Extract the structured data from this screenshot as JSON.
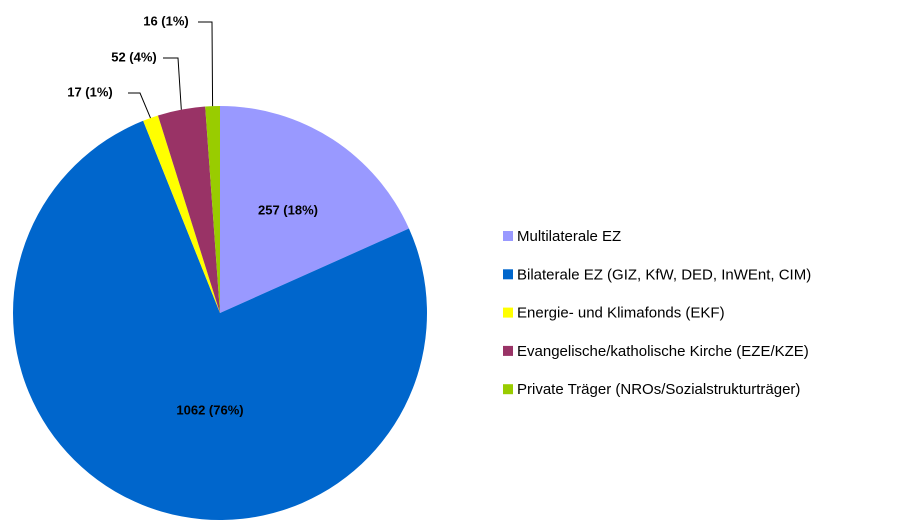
{
  "chart_data": {
    "type": "pie",
    "categories": [
      "Multilaterale EZ",
      "Bilaterale EZ (GIZ, KfW, DED, InWEnt, CIM)",
      "Energie- und Klimafonds (EKF)",
      "Evangelische/katholische Kirche (EZE/KZE)",
      "Private Träger (NROs/Sozialstrukturträger)"
    ],
    "values": [
      257,
      1062,
      17,
      52,
      16
    ],
    "value_labels": [
      "257 (18%)",
      "1062 (76%)",
      "17 (1%)",
      "52 (4%)",
      "16 (1%)"
    ],
    "colors": [
      "#9999ff",
      "#0066cc",
      "#ffff00",
      "#993366",
      "#99cc00"
    ],
    "legend": "right"
  }
}
